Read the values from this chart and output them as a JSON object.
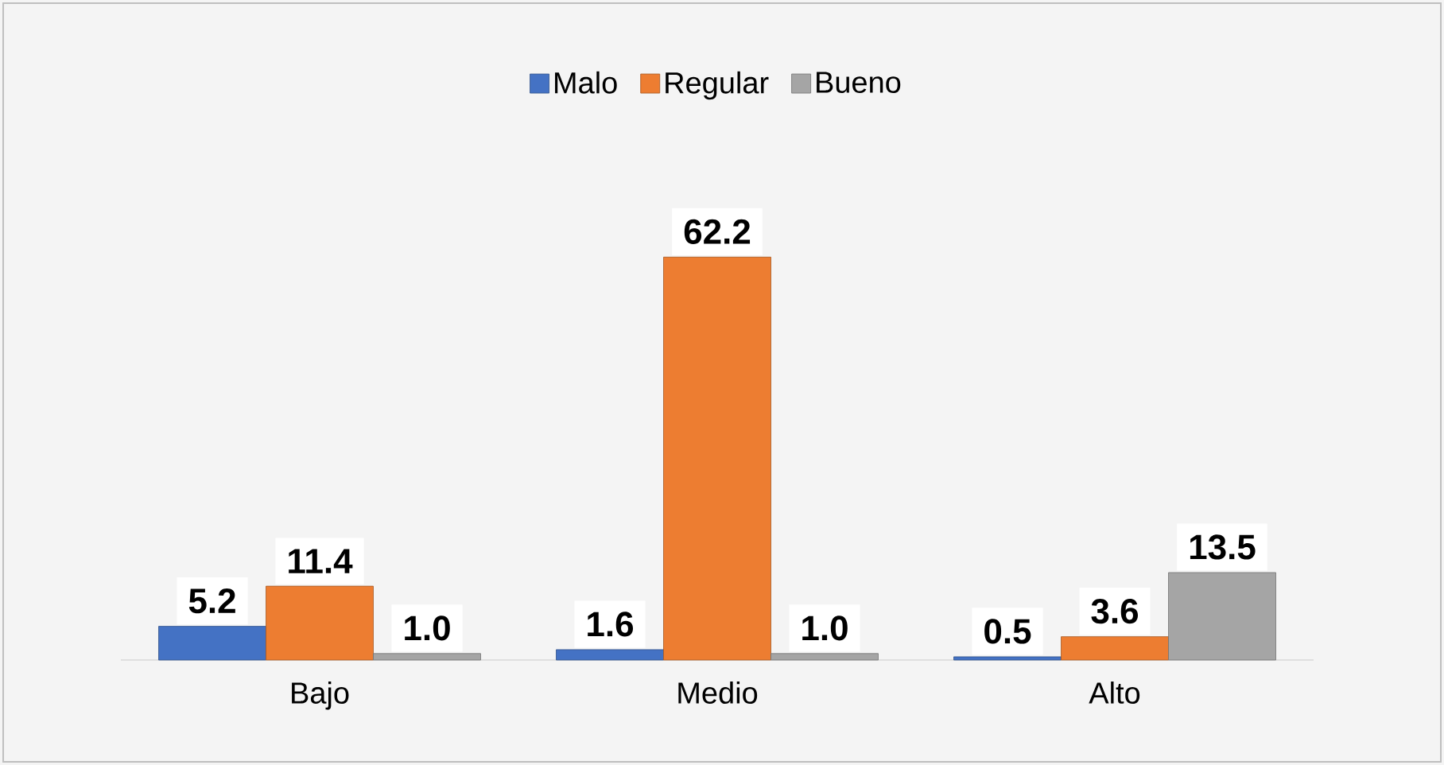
{
  "chart_data": {
    "type": "bar",
    "categories": [
      "Bajo",
      "Medio",
      "Alto"
    ],
    "series": [
      {
        "name": "Malo",
        "color": "#4472c4",
        "values": [
          5.2,
          1.6,
          0.5
        ],
        "value_labels": [
          "5.2",
          "1.6",
          "0.5"
        ]
      },
      {
        "name": "Regular",
        "color": "#ed7d31",
        "values": [
          11.4,
          62.2,
          3.6
        ],
        "value_labels": [
          "11.4",
          "62.2",
          "3.6"
        ]
      },
      {
        "name": "Bueno",
        "color": "#a5a5a5",
        "values": [
          1.0,
          1.0,
          13.5
        ],
        "value_labels": [
          "1.0",
          "1.0",
          "13.5"
        ]
      }
    ],
    "legend": "top"
  }
}
